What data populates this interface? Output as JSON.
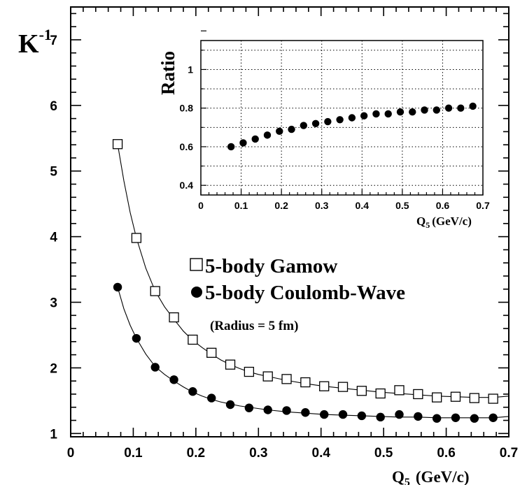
{
  "chart_data": [
    {
      "type": "line",
      "ylabel": "K",
      "ylabel_superscript": "-1",
      "xlabel": "Q",
      "xlabel_subscript": "5",
      "xlabel_unit": "(GeV/c)",
      "xlim": [
        0,
        0.7
      ],
      "ylim": [
        0.95,
        7.5
      ],
      "x_ticks": [
        "0",
        "0.1",
        "0.2",
        "0.3",
        "0.4",
        "0.5",
        "0.6",
        "0.7"
      ],
      "y_ticks": [
        "1",
        "2",
        "3",
        "4",
        "5",
        "6",
        "7"
      ],
      "legend_placement": "center-right",
      "annotation": "(Radius = 5 fm)",
      "series": [
        {
          "name": "5-body Gamow",
          "marker": "open-square",
          "x": [
            0.075,
            0.105,
            0.135,
            0.165,
            0.195,
            0.225,
            0.255,
            0.285,
            0.315,
            0.345,
            0.375,
            0.405,
            0.435,
            0.465,
            0.495,
            0.525,
            0.555,
            0.585,
            0.615,
            0.645,
            0.675
          ],
          "values": [
            5.41,
            3.98,
            3.17,
            2.77,
            2.43,
            2.23,
            2.05,
            1.94,
            1.87,
            1.83,
            1.78,
            1.72,
            1.71,
            1.65,
            1.61,
            1.66,
            1.6,
            1.55,
            1.56,
            1.54,
            1.53
          ]
        },
        {
          "name": "5-body Coulomb-Wave",
          "marker": "filled-circle",
          "x": [
            0.075,
            0.105,
            0.135,
            0.165,
            0.195,
            0.225,
            0.255,
            0.285,
            0.315,
            0.345,
            0.375,
            0.405,
            0.435,
            0.465,
            0.495,
            0.525,
            0.555,
            0.585,
            0.615,
            0.645,
            0.675
          ],
          "values": [
            3.23,
            2.45,
            2.01,
            1.82,
            1.64,
            1.54,
            1.44,
            1.39,
            1.36,
            1.35,
            1.32,
            1.29,
            1.29,
            1.27,
            1.25,
            1.29,
            1.26,
            1.23,
            1.24,
            1.23,
            1.24
          ]
        }
      ],
      "fit_curves": [
        {
          "for_series": "5-body Gamow",
          "x": [
            0.075,
            0.085,
            0.095,
            0.105,
            0.12,
            0.135,
            0.15,
            0.165,
            0.18,
            0.195,
            0.21,
            0.225,
            0.24,
            0.255,
            0.27,
            0.285,
            0.3,
            0.315,
            0.345,
            0.375,
            0.405,
            0.435,
            0.465,
            0.495,
            0.525,
            0.555,
            0.585,
            0.615,
            0.645,
            0.675,
            0.7
          ],
          "values": [
            5.41,
            4.85,
            4.37,
            3.98,
            3.52,
            3.17,
            2.93,
            2.74,
            2.56,
            2.42,
            2.31,
            2.21,
            2.12,
            2.05,
            1.99,
            1.94,
            1.9,
            1.87,
            1.81,
            1.76,
            1.72,
            1.69,
            1.66,
            1.63,
            1.61,
            1.59,
            1.57,
            1.56,
            1.55,
            1.55,
            1.57
          ]
        },
        {
          "for_series": "5-body Coulomb-Wave",
          "x": [
            0.075,
            0.085,
            0.095,
            0.105,
            0.12,
            0.135,
            0.15,
            0.165,
            0.18,
            0.195,
            0.21,
            0.225,
            0.24,
            0.255,
            0.27,
            0.285,
            0.3,
            0.315,
            0.345,
            0.375,
            0.405,
            0.435,
            0.465,
            0.495,
            0.525,
            0.555,
            0.585,
            0.615,
            0.645,
            0.675,
            0.7
          ],
          "values": [
            3.23,
            2.9,
            2.65,
            2.45,
            2.21,
            2.02,
            1.9,
            1.8,
            1.71,
            1.63,
            1.57,
            1.52,
            1.48,
            1.45,
            1.42,
            1.4,
            1.38,
            1.36,
            1.33,
            1.31,
            1.29,
            1.28,
            1.27,
            1.26,
            1.25,
            1.25,
            1.24,
            1.24,
            1.24,
            1.24,
            1.26
          ]
        }
      ]
    },
    {
      "type": "scatter",
      "ylabel": "Ratio",
      "xlabel": "Q",
      "xlabel_subscript": "5",
      "xlabel_unit": "(GeV/c)",
      "xlim": [
        0,
        0.7
      ],
      "ylim": [
        0.35,
        1.15
      ],
      "grid": true,
      "x_ticks": [
        "0",
        "0.1",
        "0.2",
        "0.3",
        "0.4",
        "0.5",
        "0.6",
        "0.7"
      ],
      "y_ticks": [
        "0.4",
        "0.6",
        "0.8",
        "1"
      ],
      "series": [
        {
          "marker": "filled-circle",
          "x": [
            0.075,
            0.105,
            0.135,
            0.165,
            0.195,
            0.225,
            0.255,
            0.285,
            0.315,
            0.345,
            0.375,
            0.405,
            0.435,
            0.465,
            0.495,
            0.525,
            0.555,
            0.585,
            0.615,
            0.645,
            0.675
          ],
          "values": [
            0.6,
            0.62,
            0.64,
            0.66,
            0.68,
            0.69,
            0.71,
            0.72,
            0.73,
            0.74,
            0.75,
            0.76,
            0.77,
            0.77,
            0.78,
            0.78,
            0.79,
            0.79,
            0.8,
            0.8,
            0.81
          ]
        }
      ]
    }
  ]
}
